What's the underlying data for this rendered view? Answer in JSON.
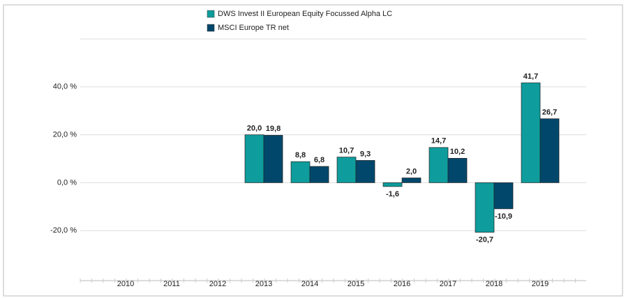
{
  "chart_data": {
    "type": "bar",
    "categories": [
      "2010",
      "2011",
      "2012",
      "2013",
      "2014",
      "2015",
      "2016",
      "2017",
      "2018",
      "2019"
    ],
    "series": [
      {
        "name": "DWS Invest II European Equity Focussed Alpha  LC",
        "color": "#0e9c9c",
        "values": [
          null,
          null,
          null,
          20.0,
          8.8,
          10.7,
          -1.6,
          14.7,
          -20.7,
          41.7
        ],
        "value_labels": [
          null,
          null,
          null,
          "20,0",
          "8,8",
          "10,7",
          "-1,6",
          "14,7",
          "-20,7",
          "41,7"
        ]
      },
      {
        "name": "MSCI Europe TR net",
        "color": "#00476b",
        "values": [
          null,
          null,
          null,
          19.8,
          6.8,
          9.3,
          2.0,
          10.2,
          -10.9,
          26.7
        ],
        "value_labels": [
          null,
          null,
          null,
          "19,8",
          "6,8",
          "9,3",
          "2,0",
          "10,2",
          "-10,9",
          "26,7"
        ]
      }
    ],
    "ylim": [
      -40,
      60
    ],
    "yticks": [
      {
        "value": -20,
        "label": "-20,0 %"
      },
      {
        "value": 0,
        "label": "0,0 %"
      },
      {
        "value": 20,
        "label": "20,0 %"
      },
      {
        "value": 40,
        "label": "40,0 %"
      }
    ],
    "grid": true,
    "legend": "top"
  }
}
